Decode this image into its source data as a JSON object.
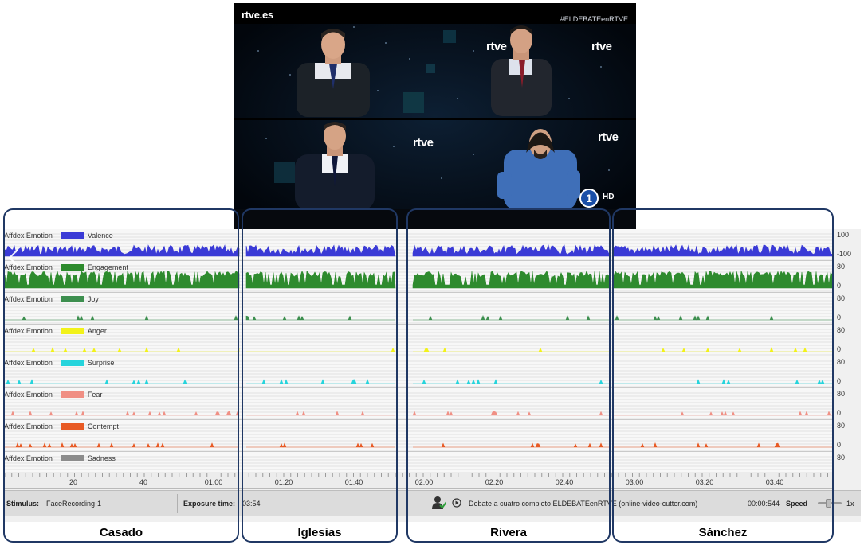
{
  "video": {
    "channel_logo": "rtve.es",
    "hashtag": "#ELDEBATEenRTVE",
    "watermark": "rtve",
    "channel_number": "1",
    "hd_badge": "HD"
  },
  "rows": [
    {
      "label": "Affdex Emotion",
      "metric": "Valence",
      "color": "#3a3ad6",
      "scale_top": "100",
      "scale_bottom": "-100"
    },
    {
      "label": "Affdex Emotion",
      "metric": "Engagement",
      "color": "#2e8b2e",
      "scale_top": "80",
      "scale_bottom": "0"
    },
    {
      "label": "Affdex Emotion",
      "metric": "Joy",
      "color": "#3d8f4f",
      "scale_top": "80",
      "scale_bottom": "0"
    },
    {
      "label": "Affdex Emotion",
      "metric": "Anger",
      "color": "#f2f21a",
      "scale_top": "80",
      "scale_bottom": "0"
    },
    {
      "label": "Affdex Emotion",
      "metric": "Surprise",
      "color": "#26d4dc",
      "scale_top": "80",
      "scale_bottom": "0"
    },
    {
      "label": "Affdex Emotion",
      "metric": "Fear",
      "color": "#f08f84",
      "scale_top": "80",
      "scale_bottom": "0"
    },
    {
      "label": "Affdex Emotion",
      "metric": "Contempt",
      "color": "#e85a24",
      "scale_top": "80",
      "scale_bottom": "0"
    },
    {
      "label": "Affdex Emotion",
      "metric": "Sadness",
      "color": "#8c8c8c",
      "scale_top": "80",
      "scale_bottom": ""
    }
  ],
  "timeline": {
    "ticks": [
      "20",
      "40",
      "01:00",
      "01:20",
      "01:40",
      "02:00",
      "02:20",
      "02:40",
      "03:00",
      "03:20",
      "03:40"
    ]
  },
  "status": {
    "stimulus_label": "Stimulus:",
    "stimulus_value": "FaceRecording-1",
    "exposure_label": "Exposure time:",
    "exposure_value": "03:54",
    "media_title": "Debate a cuatro completo ELDEBATEenRTVE (online-video-cutter.com)",
    "time_value": "00:00:544",
    "speed_label": "Speed",
    "speed_value": "1x"
  },
  "participants": [
    "Casado",
    "Iglesias",
    "Rivera",
    "Sánchez"
  ],
  "icons": [
    "back-arrow-icon",
    "user-check-icon",
    "play-circle-icon",
    "speed-slider"
  ]
}
